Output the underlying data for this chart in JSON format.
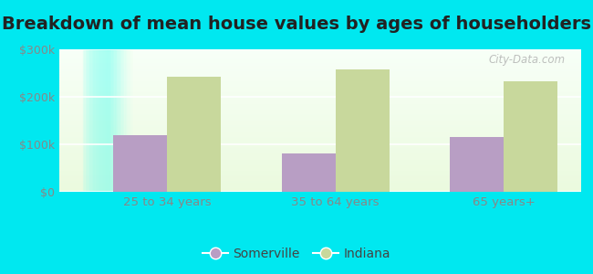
{
  "title": "Breakdown of mean house values by ages of householders",
  "categories": [
    "25 to 34 years",
    "35 to 64 years",
    "65 years+"
  ],
  "somerville_values": [
    120000,
    80000,
    115000
  ],
  "indiana_values": [
    242000,
    258000,
    232000
  ],
  "ylim": [
    0,
    300000
  ],
  "yticks": [
    0,
    100000,
    200000,
    300000
  ],
  "ytick_labels": [
    "$0",
    "$100k",
    "$200k",
    "$300k"
  ],
  "somerville_color": "#b89ec4",
  "indiana_color": "#c8d89c",
  "background_outer": "#00e8f0",
  "title_fontsize": 14,
  "legend_labels": [
    "Somerville",
    "Indiana"
  ],
  "bar_width": 0.32,
  "watermark": "City-Data.com"
}
